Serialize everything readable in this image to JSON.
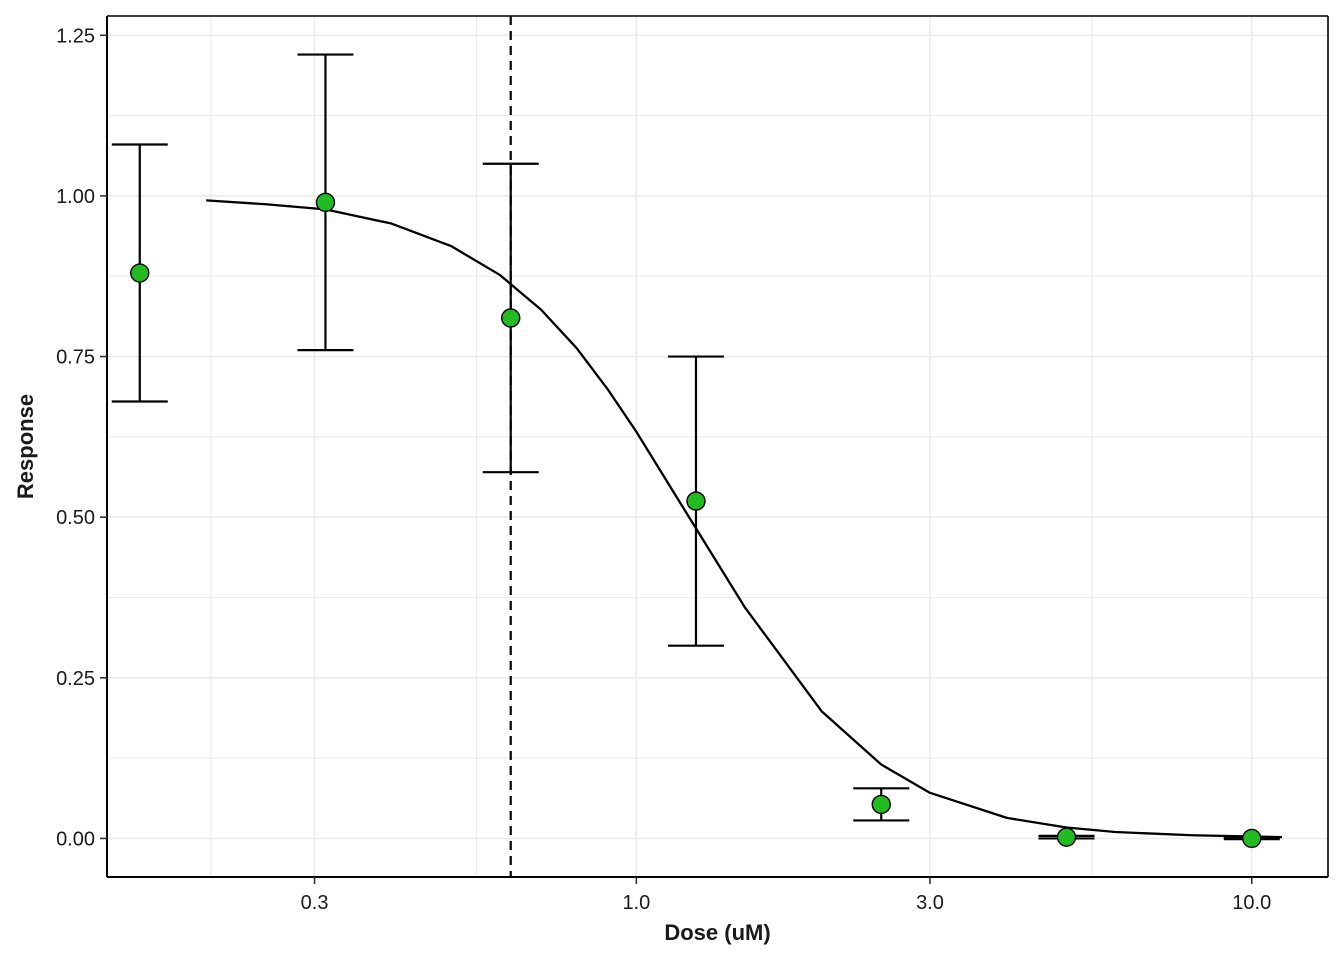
{
  "chart_data": {
    "type": "scatter",
    "xlabel": "Dose (uM)",
    "ylabel": "Response",
    "x_scale": "log10",
    "xlim": [
      0.138,
      13.3
    ],
    "ylim": [
      -0.06,
      1.28
    ],
    "x_ticks": [
      0.3,
      1.0,
      3.0,
      10.0
    ],
    "x_tick_labels": [
      "0.3",
      "1.0",
      "3.0",
      "10.0"
    ],
    "x_minor_gridlines": [
      0.55,
      5.5
    ],
    "y_ticks": [
      0.0,
      0.25,
      0.5,
      0.75,
      1.0,
      1.25
    ],
    "y_tick_labels": [
      "0.00",
      "0.25",
      "0.50",
      "0.75",
      "1.00",
      "1.25"
    ],
    "grid": true,
    "points": [
      {
        "x": 0.156,
        "y": 0.88,
        "ymin": 0.68,
        "ymax": 1.08
      },
      {
        "x": 0.3125,
        "y": 0.99,
        "ymin": 0.76,
        "ymax": 1.22
      },
      {
        "x": 0.625,
        "y": 0.81,
        "ymin": 0.57,
        "ymax": 1.05
      },
      {
        "x": 1.25,
        "y": 0.525,
        "ymin": 0.3,
        "ymax": 0.75
      },
      {
        "x": 2.5,
        "y": 0.053,
        "ymin": 0.028,
        "ymax": 0.078
      },
      {
        "x": 5.0,
        "y": 0.002,
        "ymin": 0.0,
        "ymax": 0.004
      },
      {
        "x": 10.0,
        "y": 0.0,
        "ymin": -0.001,
        "ymax": 0.001
      }
    ],
    "fit_curve": {
      "x": [
        0.2,
        0.25,
        0.3125,
        0.4,
        0.5,
        0.6,
        0.7,
        0.8,
        0.9,
        1.0,
        1.2,
        1.5,
        2.0,
        2.5,
        3.0,
        4.0,
        5.0,
        6.0,
        8.0,
        11.2
      ],
      "y": [
        0.993,
        0.987,
        0.979,
        0.957,
        0.922,
        0.877,
        0.823,
        0.763,
        0.698,
        0.633,
        0.51,
        0.36,
        0.198,
        0.115,
        0.071,
        0.032,
        0.017,
        0.01,
        0.005,
        0.002
      ]
    },
    "reference_line": {
      "x": 0.625,
      "style": "dashed"
    },
    "point_color": "#22bb22",
    "line_color": "#000000",
    "grid_color": "#ebebeb"
  }
}
